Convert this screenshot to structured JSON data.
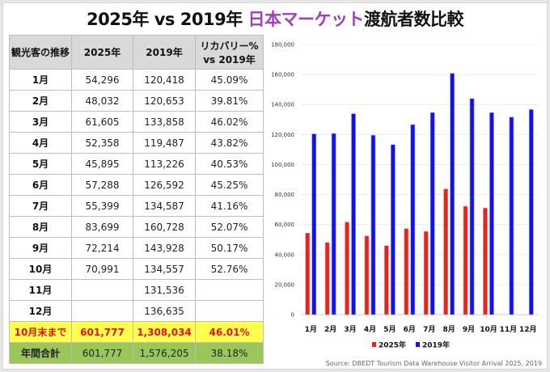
{
  "title": {
    "prefix": "2025年 vs 2019年 ",
    "accent": "日本マーケット",
    "suffix": "渡航者数比較",
    "accent_color": "#a040c0"
  },
  "table": {
    "headers": [
      "観光客の推移",
      "2025年",
      "2019年",
      "リカバリー% vs 2019年"
    ],
    "rows": [
      {
        "month": "1月",
        "y2025": "54,296",
        "y2019": "120,418",
        "recovery": "45.09%"
      },
      {
        "month": "2月",
        "y2025": "48,032",
        "y2019": "120,653",
        "recovery": "39.81%"
      },
      {
        "month": "3月",
        "y2025": "61,605",
        "y2019": "133,858",
        "recovery": "46.02%"
      },
      {
        "month": "4月",
        "y2025": "52,358",
        "y2019": "119,487",
        "recovery": "43.82%"
      },
      {
        "month": "5月",
        "y2025": "45,895",
        "y2019": "113,226",
        "recovery": "40.53%"
      },
      {
        "month": "6月",
        "y2025": "57,288",
        "y2019": "126,592",
        "recovery": "45.25%"
      },
      {
        "month": "7月",
        "y2025": "55,399",
        "y2019": "134,587",
        "recovery": "41.16%"
      },
      {
        "month": "8月",
        "y2025": "83,699",
        "y2019": "160,728",
        "recovery": "52.07%"
      },
      {
        "month": "9月",
        "y2025": "72,214",
        "y2019": "143,928",
        "recovery": "50.17%"
      },
      {
        "month": "10月",
        "y2025": "70,991",
        "y2019": "134,557",
        "recovery": "52.76%"
      },
      {
        "month": "11月",
        "y2025": "",
        "y2019": "131,536",
        "recovery": ""
      },
      {
        "month": "12月",
        "y2025": "",
        "y2019": "136,635",
        "recovery": ""
      }
    ],
    "ytd": {
      "label": "10月末まで",
      "y2025": "601,777",
      "y2019": "1,308,034",
      "recovery": "46.01%"
    },
    "total": {
      "label": "年間合計",
      "y2025": "601,777",
      "y2019": "1,576,205",
      "recovery": "38.18%"
    },
    "colors": {
      "header_bg": "#d9d9d9",
      "ytd_bg": "#ffff4d",
      "ytd_text": "#e8101a",
      "total_bg": "#9bc75a"
    }
  },
  "chart_data": {
    "type": "bar",
    "categories": [
      "1月",
      "2月",
      "3月",
      "4月",
      "5月",
      "6月",
      "7月",
      "8月",
      "9月",
      "10月",
      "11月",
      "12月"
    ],
    "series": [
      {
        "name": "2025年",
        "color": "#e8231a",
        "values": [
          54296,
          48032,
          61605,
          52358,
          45895,
          57288,
          55399,
          83699,
          72214,
          70991,
          null,
          null
        ]
      },
      {
        "name": "2019年",
        "color": "#1010f0",
        "values": [
          120418,
          120653,
          133858,
          119487,
          113226,
          126592,
          134587,
          160728,
          143928,
          134557,
          131536,
          136635
        ]
      }
    ],
    "ylim": [
      0,
      180000
    ],
    "yticks": [
      0,
      20000,
      40000,
      60000,
      80000,
      100000,
      120000,
      140000,
      160000,
      180000
    ],
    "ytick_labels": [
      "0",
      "20,000",
      "40,000",
      "60,000",
      "80,000",
      "100,000",
      "120,000",
      "140,000",
      "160,000",
      "180,000"
    ],
    "grid": true,
    "legend": "bottom",
    "title": "",
    "xlabel": "",
    "ylabel": ""
  },
  "source": "Source: DBEDT Tourism Data Warehouse Visitor Arrival 2025, 2019"
}
